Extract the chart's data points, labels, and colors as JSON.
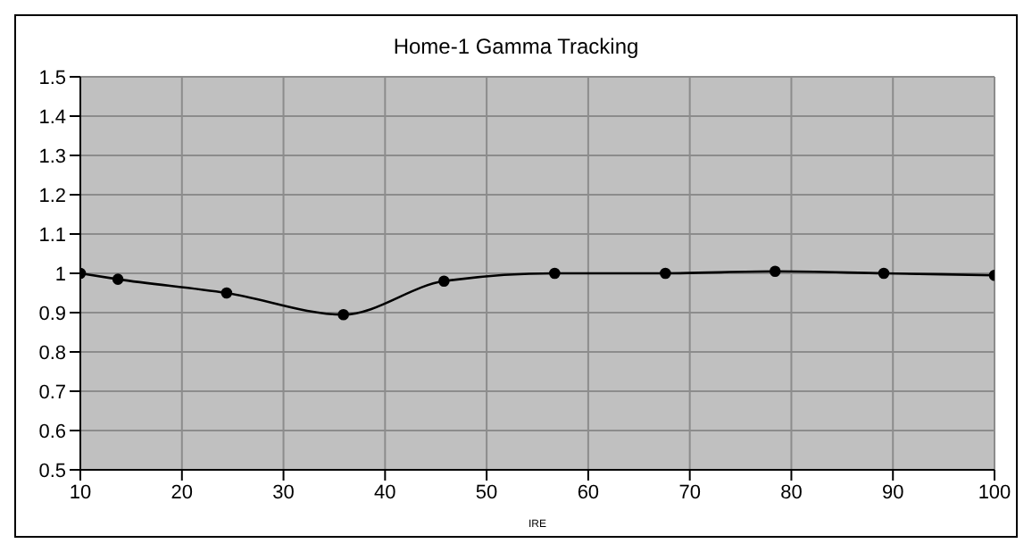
{
  "chart_data": {
    "type": "line",
    "title": "Home-1 Gamma Tracking",
    "xlabel": "IRE",
    "x": [
      10,
      13.7,
      24.4,
      35.9,
      45.8,
      56.7,
      67.6,
      78.4,
      89.1,
      100
    ],
    "series": [
      {
        "color": "#000000",
        "values": [
          1.0,
          0.985,
          0.95,
          0.895,
          0.98,
          1.0,
          1.0,
          1.005,
          1.0,
          0.995
        ]
      }
    ],
    "xlim": [
      10,
      100
    ],
    "xticks": [
      10,
      20,
      30,
      40,
      50,
      60,
      70,
      80,
      90,
      100
    ],
    "ylim": [
      0.5,
      1.5
    ],
    "yticks": [
      0.5,
      0.6,
      0.7,
      0.8,
      0.9,
      1,
      1.1,
      1.2,
      1.3,
      1.4,
      1.5
    ],
    "grid": true,
    "legend": false,
    "marker": "circle",
    "line_style": "solid"
  }
}
